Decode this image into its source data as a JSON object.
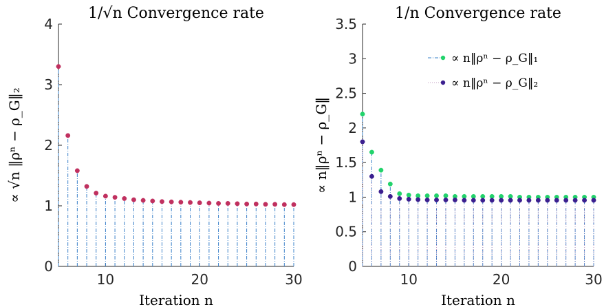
{
  "chart_data": [
    {
      "type": "scatter",
      "title": "1/√n Convergence rate",
      "xlabel": "Iteration n",
      "ylabel": "∝ √n ‖ρⁿ − ρ_G‖₂",
      "xlim": [
        5,
        30
      ],
      "ylim": [
        0,
        4
      ],
      "xticks": [
        "10",
        "20",
        "30"
      ],
      "yticks": [
        "0",
        "1",
        "2",
        "3",
        "4"
      ],
      "grid": false,
      "stem_style": "dash-dot vertical lines to zero",
      "series": [
        {
          "color_marker": "#c0305f",
          "color_stem": "#3a80c9",
          "x": [
            5,
            6,
            7,
            8,
            9,
            10,
            11,
            12,
            13,
            14,
            15,
            16,
            17,
            18,
            19,
            20,
            21,
            22,
            23,
            24,
            25,
            26,
            27,
            28,
            29,
            30
          ],
          "values": [
            3.3,
            2.16,
            1.58,
            1.32,
            1.21,
            1.16,
            1.14,
            1.12,
            1.1,
            1.09,
            1.08,
            1.07,
            1.065,
            1.06,
            1.055,
            1.05,
            1.045,
            1.04,
            1.04,
            1.035,
            1.03,
            1.03,
            1.025,
            1.025,
            1.02,
            1.02
          ]
        }
      ]
    },
    {
      "type": "scatter",
      "title": "1/n Convergence rate",
      "xlabel": "Iteration n",
      "ylabel": "∝ n‖ρⁿ − ρ_G‖",
      "xlim": [
        5,
        30
      ],
      "ylim": [
        0,
        3.5
      ],
      "xticks": [
        "10",
        "20",
        "30"
      ],
      "yticks": [
        "0",
        "0.5",
        "1",
        "1.5",
        "2",
        "2.5",
        "3",
        "3.5"
      ],
      "grid": false,
      "legend_position": "top-right",
      "series": [
        {
          "name": "∝ n‖ρⁿ − ρ_G‖₁",
          "color_marker": "#22d36b",
          "color_stem": "#3a80c9",
          "x": [
            5,
            6,
            7,
            8,
            9,
            10,
            11,
            12,
            13,
            14,
            15,
            16,
            17,
            18,
            19,
            20,
            21,
            22,
            23,
            24,
            25,
            26,
            27,
            28,
            29,
            30
          ],
          "values": [
            2.2,
            1.65,
            1.39,
            1.19,
            1.05,
            1.03,
            1.02,
            1.02,
            1.02,
            1.02,
            1.01,
            1.01,
            1.01,
            1.01,
            1.01,
            1.01,
            1.01,
            1.0,
            1.0,
            1.0,
            1.0,
            1.0,
            1.0,
            1.0,
            1.0,
            1.0
          ]
        },
        {
          "name": "∝ n‖ρⁿ − ρ_G‖₂",
          "color_marker": "#3b1f8f",
          "color_stem": "#c4a0c4",
          "x": [
            5,
            6,
            7,
            8,
            9,
            10,
            11,
            12,
            13,
            14,
            15,
            16,
            17,
            18,
            19,
            20,
            21,
            22,
            23,
            24,
            25,
            26,
            27,
            28,
            29,
            30
          ],
          "values": [
            1.8,
            1.3,
            1.08,
            1.01,
            0.98,
            0.97,
            0.965,
            0.96,
            0.96,
            0.96,
            0.96,
            0.955,
            0.955,
            0.955,
            0.955,
            0.955,
            0.955,
            0.955,
            0.955,
            0.955,
            0.955,
            0.955,
            0.955,
            0.955,
            0.955,
            0.955
          ]
        }
      ]
    }
  ]
}
